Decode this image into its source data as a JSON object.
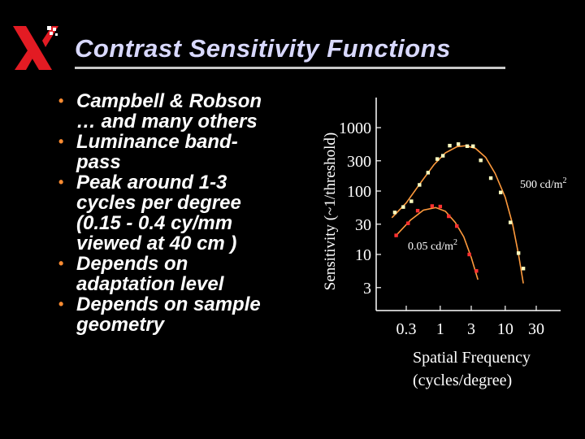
{
  "slide": {
    "title": "Contrast Sensitivity Functions",
    "bullets": [
      {
        "lines": [
          "Campbell & Robson",
          "… and many others"
        ]
      },
      {
        "lines": [
          "Luminance band-",
          "pass"
        ]
      },
      {
        "lines": [
          "Peak around 1-3",
          "cycles per degree",
          "(0.15 - 0.4 cy/mm",
          "viewed at 40 cm )"
        ]
      },
      {
        "lines": [
          "Depends on",
          "adaptation level"
        ]
      },
      {
        "lines": [
          "Depends on sample",
          "geometry"
        ]
      }
    ]
  },
  "colors": {
    "title": "#d9d9ff",
    "bullet_dot": "#ff8c32",
    "curve": "#ff9a3c",
    "points_high": "#ffffc0",
    "points_low": "#ff3030",
    "axis": "#ffffff"
  },
  "icons": {
    "logo": "xerox-x-logo"
  },
  "chart_data": {
    "type": "scatter",
    "ylabel": "Sensitivity (~1/threshold)",
    "xlabel_lines": [
      "Spatial Frequency",
      "(cycles/degree)"
    ],
    "x_scale": "log",
    "y_scale": "log",
    "x_ticks": [
      {
        "value": 0.3,
        "label": "0.3"
      },
      {
        "value": 1,
        "label": "1"
      },
      {
        "value": 3,
        "label": "3"
      },
      {
        "value": 10,
        "label": "10"
      },
      {
        "value": 30,
        "label": "30"
      }
    ],
    "y_ticks": [
      {
        "value": 1000,
        "label": "1000"
      },
      {
        "value": 300,
        "label": "300"
      },
      {
        "value": 100,
        "label": "100"
      },
      {
        "value": 30,
        "label": "30"
      },
      {
        "value": 10,
        "label": "10"
      },
      {
        "value": 3,
        "label": "3"
      }
    ],
    "series": [
      {
        "label_base": "500 cd/m",
        "label_sup": "2",
        "points": [
          [
            0.2,
            46
          ],
          [
            0.27,
            56
          ],
          [
            0.36,
            69
          ],
          [
            0.48,
            125
          ],
          [
            0.65,
            195
          ],
          [
            0.9,
            320
          ],
          [
            1.1,
            360
          ],
          [
            1.4,
            520
          ],
          [
            1.9,
            550
          ],
          [
            2.6,
            510
          ],
          [
            3.2,
            510
          ],
          [
            4.2,
            305
          ],
          [
            6.0,
            160
          ],
          [
            8.5,
            95
          ],
          [
            12,
            32
          ],
          [
            16,
            10.5
          ],
          [
            19,
            6.0
          ]
        ],
        "curve": [
          [
            0.18,
            38
          ],
          [
            0.3,
            65
          ],
          [
            0.5,
            135
          ],
          [
            0.8,
            260
          ],
          [
            1.2,
            400
          ],
          [
            1.8,
            500
          ],
          [
            2.5,
            520
          ],
          [
            3.5,
            470
          ],
          [
            5,
            340
          ],
          [
            7,
            190
          ],
          [
            10,
            80
          ],
          [
            13,
            30
          ],
          [
            16,
            10
          ],
          [
            19,
            3.5
          ]
        ]
      },
      {
        "label_base": "0.05 cd/m",
        "label_sup": "2",
        "points": [
          [
            0.21,
            20
          ],
          [
            0.32,
            31
          ],
          [
            0.45,
            49
          ],
          [
            0.75,
            58
          ],
          [
            1.0,
            57
          ],
          [
            1.35,
            40
          ],
          [
            1.8,
            28
          ],
          [
            2.8,
            10
          ],
          [
            3.6,
            5.5
          ]
        ],
        "curve": [
          [
            0.2,
            19
          ],
          [
            0.35,
            35
          ],
          [
            0.55,
            50
          ],
          [
            0.85,
            55
          ],
          [
            1.2,
            48
          ],
          [
            1.7,
            32
          ],
          [
            2.3,
            19
          ],
          [
            3.0,
            9
          ],
          [
            3.8,
            4
          ]
        ]
      }
    ]
  }
}
